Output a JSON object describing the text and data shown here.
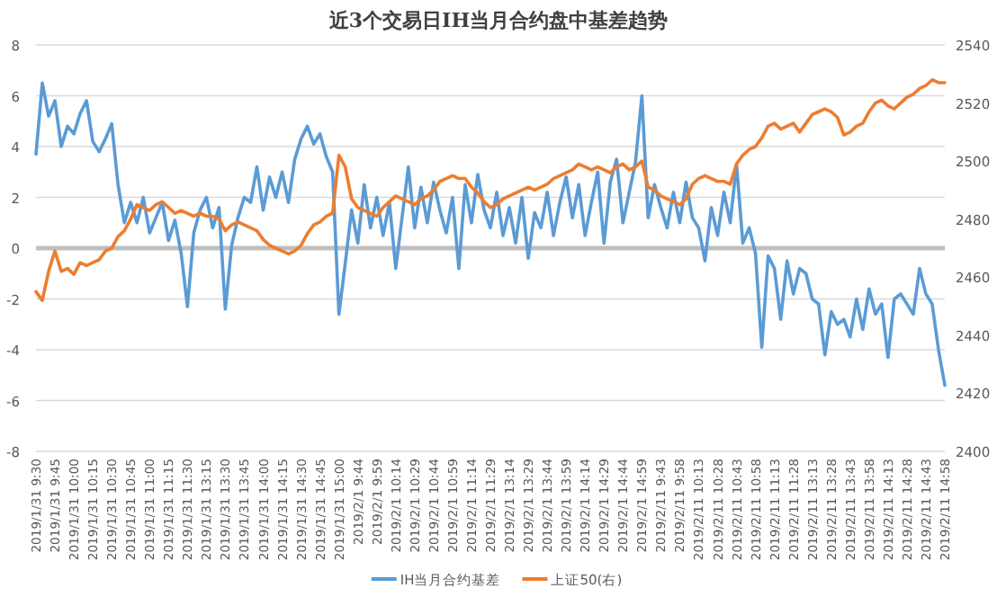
{
  "chart_data": {
    "type": "line",
    "title": "近3个交易日IH当月合约盘中基差趋势",
    "categories": [
      "2019/1/31 9:30",
      null,
      null,
      "2019/1/31 9:45",
      null,
      null,
      "2019/1/31 10:00",
      null,
      null,
      "2019/1/31 10:15",
      null,
      null,
      "2019/1/31 10:30",
      null,
      null,
      "2019/1/31 10:45",
      null,
      null,
      "2019/1/31 11:00",
      null,
      null,
      "2019/1/31 11:15",
      null,
      null,
      "2019/1/31 11:30",
      null,
      null,
      "2019/1/31 13:15",
      null,
      null,
      "2019/1/31 13:30",
      null,
      null,
      "2019/1/31 13:45",
      null,
      null,
      "2019/1/31 14:00",
      null,
      null,
      "2019/1/31 14:15",
      null,
      null,
      "2019/1/31 14:30",
      null,
      null,
      "2019/1/31 14:45",
      null,
      null,
      "2019/1/31 15:00",
      null,
      null,
      "2019/2/1 9:44",
      null,
      null,
      "2019/2/1 9:59",
      null,
      null,
      "2019/2/1 10:14",
      null,
      null,
      "2019/2/1 10:29",
      null,
      null,
      "2019/2/1 10:44",
      null,
      null,
      "2019/2/1 10:59",
      null,
      null,
      "2019/2/1 11:14",
      null,
      null,
      "2019/2/1 11:29",
      null,
      null,
      "2019/2/1 13:14",
      null,
      null,
      "2019/2/1 13:29",
      null,
      null,
      "2019/2/1 13:44",
      null,
      null,
      "2019/2/1 13:59",
      null,
      null,
      "2019/2/1 14:14",
      null,
      null,
      "2019/2/1 14:29",
      null,
      null,
      "2019/2/1 14:44",
      null,
      null,
      "2019/2/1 14:59",
      null,
      null,
      "2019/2/11 9:43",
      null,
      null,
      "2019/2/11 9:58",
      null,
      null,
      "2019/2/11 10:13",
      null,
      null,
      "2019/2/11 10:28",
      null,
      null,
      "2019/2/11 10:43",
      null,
      null,
      "2019/2/11 10:58",
      null,
      null,
      "2019/2/11 11:13",
      null,
      null,
      "2019/2/11 11:28",
      null,
      null,
      "2019/2/11 13:13",
      null,
      null,
      "2019/2/11 13:28",
      null,
      null,
      "2019/2/11 13:43",
      null,
      null,
      "2019/2/11 13:58",
      null,
      null,
      "2019/2/11 14:13",
      null,
      null,
      "2019/2/11 14:28",
      null,
      null,
      "2019/2/11 14:43",
      null,
      null,
      "2019/2/11 14:58"
    ],
    "series": [
      {
        "name": "IH当月合约基差",
        "color": "#5b9bd5",
        "values": [
          3.7,
          6.5,
          5.2,
          5.8,
          4.0,
          4.8,
          4.5,
          5.3,
          5.8,
          4.2,
          3.8,
          4.3,
          4.9,
          2.5,
          1.0,
          1.8,
          1.0,
          2.0,
          0.6,
          1.2,
          1.8,
          0.3,
          1.1,
          -0.2,
          -2.3,
          0.6,
          1.5,
          2.0,
          0.8,
          1.6,
          -2.4,
          0.1,
          1.2,
          2.0,
          1.8,
          3.2,
          1.5,
          2.8,
          2.0,
          3.0,
          1.8,
          3.5,
          4.3,
          4.8,
          4.1,
          4.5,
          3.6,
          3.0,
          -2.6,
          -0.6,
          1.5,
          0.2,
          2.5,
          0.8,
          2.0,
          0.5,
          1.8,
          -0.8,
          1.2,
          3.2,
          0.8,
          2.4,
          1.0,
          2.6,
          1.5,
          0.6,
          2.0,
          -0.8,
          2.5,
          1.0,
          2.9,
          1.5,
          0.8,
          2.2,
          0.5,
          1.6,
          0.2,
          2.0,
          -0.4,
          1.4,
          0.8,
          2.2,
          0.5,
          1.8,
          2.8,
          1.2,
          2.5,
          0.5,
          1.8,
          3.0,
          0.2,
          2.6,
          3.5,
          1.0,
          2.2,
          3.4,
          6.0,
          1.2,
          2.5,
          1.6,
          0.8,
          2.2,
          1.0,
          2.6,
          1.2,
          0.8,
          -0.5,
          1.6,
          0.5,
          2.2,
          1.0,
          3.3,
          0.2,
          0.8,
          -0.2,
          -3.9,
          -0.3,
          -0.8,
          -2.8,
          -0.5,
          -1.8,
          -0.8,
          -1.0,
          -2.0,
          -2.2,
          -4.2,
          -2.5,
          -3.0,
          -2.8,
          -3.5,
          -2.0,
          -3.2,
          -1.6,
          -2.6,
          -2.2,
          -4.3,
          -2.0,
          -1.8,
          -2.2,
          -2.6,
          -0.8,
          -1.8,
          -2.2,
          -4.0,
          -5.4
        ]
      },
      {
        "name": "上证50(右)",
        "color": "#ed7d31",
        "axis": "y2",
        "values": [
          2455,
          2452,
          2462,
          2469,
          2462,
          2463,
          2461,
          2465,
          2464,
          2465,
          2466,
          2469,
          2470,
          2474,
          2476,
          2480,
          2485,
          2484,
          2483,
          2485,
          2486,
          2484,
          2482,
          2483,
          2482,
          2481,
          2482,
          2481,
          2481,
          2480,
          2476,
          2478,
          2479,
          2478,
          2477,
          2476,
          2473,
          2471,
          2470,
          2469,
          2468,
          2469,
          2471,
          2475,
          2478,
          2479,
          2481,
          2482,
          2502,
          2498,
          2487,
          2484,
          2483,
          2482,
          2481,
          2484,
          2486,
          2488,
          2487,
          2486,
          2485,
          2487,
          2488,
          2490,
          2493,
          2494,
          2495,
          2494,
          2494,
          2491,
          2489,
          2486,
          2484,
          2485,
          2487,
          2488,
          2489,
          2490,
          2491,
          2490,
          2491,
          2492,
          2494,
          2495,
          2496,
          2497,
          2499,
          2498,
          2497,
          2498,
          2497,
          2496,
          2498,
          2499,
          2497,
          2498,
          2500,
          2491,
          2490,
          2488,
          2487,
          2486,
          2485,
          2487,
          2492,
          2494,
          2495,
          2494,
          2493,
          2493,
          2492,
          2499,
          2502,
          2504,
          2505,
          2508,
          2512,
          2513,
          2511,
          2512,
          2513,
          2510,
          2513,
          2516,
          2517,
          2518,
          2517,
          2515,
          2509,
          2510,
          2512,
          2513,
          2517,
          2520,
          2521,
          2519,
          2518,
          2520,
          2522,
          2523,
          2525,
          2526,
          2528,
          2527,
          2527
        ]
      }
    ],
    "ylim": [
      -8,
      8
    ],
    "yticks": [
      -8,
      -6,
      -4,
      -2,
      0,
      2,
      4,
      6,
      8
    ],
    "y2lim": [
      2400,
      2540
    ],
    "y2ticks": [
      2400,
      2420,
      2440,
      2460,
      2480,
      2500,
      2520,
      2540
    ],
    "grid": "y",
    "legend": "bottom"
  }
}
